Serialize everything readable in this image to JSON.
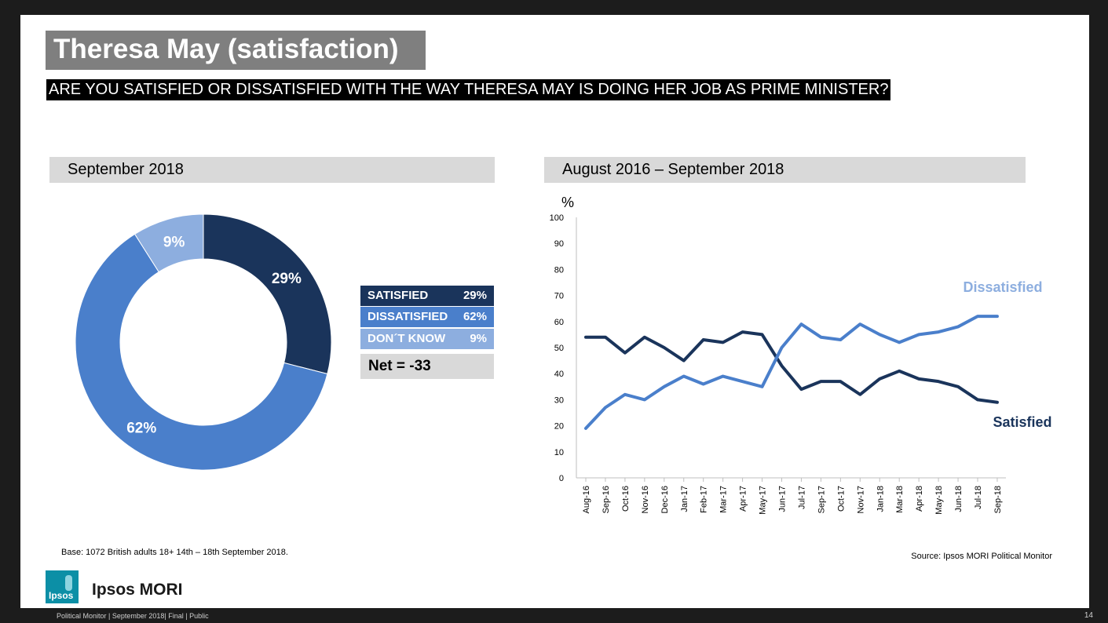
{
  "title": "Theresa May (satisfaction)",
  "question": "ARE YOU SATISFIED OR DISSATISFIED WITH THE WAY THERESA MAY IS DOING HER JOB AS PRIME MINISTER?",
  "colors": {
    "satisfied": "#1a345b",
    "dissatisfied": "#4a7fcb",
    "dont_know": "#8daedf",
    "header_bg": "#d9d9d9"
  },
  "left_panel": {
    "header": "September 2018",
    "legend": [
      {
        "label": "SATISFIED",
        "value": "29%"
      },
      {
        "label": "DISSATISFIED",
        "value": "62%"
      },
      {
        "label": "DON´T KNOW",
        "value": "9%"
      }
    ],
    "net": "Net = -33"
  },
  "right_panel": {
    "header": "August 2016 – September 2018"
  },
  "chart_data": [
    {
      "type": "pie",
      "style": "donut",
      "title": "September 2018",
      "labels": [
        "Satisfied",
        "Dissatisfied",
        "Don't know"
      ],
      "values": [
        29,
        62,
        9
      ],
      "data_labels": [
        "29%",
        "62%",
        "9%"
      ]
    },
    {
      "type": "line",
      "title": "August 2016 – September 2018",
      "ylabel": "%",
      "ylim": [
        0,
        100
      ],
      "yticks": [
        "0",
        "10",
        "20",
        "30",
        "40",
        "50",
        "60",
        "70",
        "80",
        "90",
        "100"
      ],
      "categories": [
        "Aug-16",
        "Sep-16",
        "Oct-16",
        "Nov-16",
        "Dec-16",
        "Jan-17",
        "Feb-17",
        "Mar-17",
        "Apr-17",
        "May-17",
        "Jun-17",
        "Jul-17",
        "Sep-17",
        "Oct-17",
        "Nov-17",
        "Jan-18",
        "Mar-18",
        "Apr-18",
        "May-18",
        "Jun-18",
        "Jul-18",
        "Sep-18"
      ],
      "series": [
        {
          "name": "Satisfied",
          "values": [
            54,
            54,
            48,
            54,
            50,
            45,
            53,
            52,
            56,
            55,
            43,
            34,
            37,
            37,
            32,
            38,
            41,
            38,
            37,
            35,
            30,
            29
          ]
        },
        {
          "name": "Dissatisfied",
          "values": [
            19,
            27,
            32,
            30,
            35,
            39,
            36,
            39,
            37,
            35,
            50,
            59,
            54,
            53,
            59,
            55,
            52,
            55,
            56,
            58,
            62,
            62
          ]
        }
      ]
    }
  ],
  "base_note": "Base: 1072 British adults 18+ 14th – 18th September 2018.",
  "source_note": "Source: Ipsos MORI Political Monitor",
  "logo_text": "Ipsos",
  "brand_name": "Ipsos MORI",
  "footer": "Political Monitor | September 2018| Final | Public",
  "page_number": "14"
}
